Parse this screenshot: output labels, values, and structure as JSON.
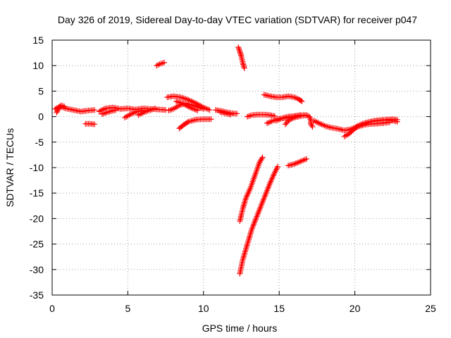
{
  "chart_data": {
    "type": "scatter",
    "title": "Day 326 of 2019, Sidereal Day-to-day VTEC variation (SDTVAR) for receiver p047",
    "xlabel": "GPS time / hours",
    "ylabel": "SDTVAR / TECUs",
    "xlim": [
      0,
      25
    ],
    "ylim": [
      -35,
      15
    ],
    "xticks": [
      0,
      5,
      10,
      15,
      20,
      25
    ],
    "yticks": [
      15,
      10,
      5,
      0,
      -5,
      -10,
      -15,
      -20,
      -25,
      -30,
      -35
    ],
    "grid": true,
    "marker": "+",
    "color": "#ff0000",
    "series": [
      {
        "points": [
          [
            0.2,
            1.5
          ],
          [
            0.5,
            2.0
          ],
          [
            0.9,
            1.6
          ],
          [
            1.4,
            1.3
          ],
          [
            1.9,
            1.0
          ],
          [
            2.4,
            1.2
          ],
          [
            2.8,
            1.3
          ]
        ]
      },
      {
        "points": [
          [
            0.3,
            0.8
          ],
          [
            0.4,
            1.5
          ],
          [
            0.6,
            2.2
          ],
          [
            0.8,
            2.0
          ]
        ]
      },
      {
        "points": [
          [
            2.2,
            -1.4
          ],
          [
            2.5,
            -1.4
          ],
          [
            2.8,
            -1.5
          ]
        ]
      },
      {
        "points": [
          [
            3.1,
            1.0
          ],
          [
            3.5,
            1.6
          ],
          [
            4.0,
            1.8
          ],
          [
            4.5,
            1.5
          ],
          [
            5.0,
            1.6
          ],
          [
            5.5,
            1.4
          ],
          [
            6.0,
            1.6
          ],
          [
            6.5,
            1.5
          ],
          [
            7.0,
            1.4
          ],
          [
            7.5,
            1.3
          ]
        ]
      },
      {
        "points": [
          [
            3.3,
            0.5
          ],
          [
            3.8,
            1.0
          ],
          [
            4.2,
            1.3
          ]
        ]
      },
      {
        "points": [
          [
            4.8,
            -0.2
          ],
          [
            5.2,
            0.5
          ],
          [
            5.6,
            1.0
          ],
          [
            6.0,
            1.2
          ]
        ]
      },
      {
        "points": [
          [
            5.7,
            0.3
          ],
          [
            6.1,
            0.9
          ],
          [
            6.5,
            1.3
          ],
          [
            6.8,
            1.6
          ]
        ]
      },
      {
        "points": [
          [
            6.9,
            10.0
          ],
          [
            7.1,
            10.3
          ],
          [
            7.4,
            10.6
          ]
        ]
      },
      {
        "points": [
          [
            7.6,
            3.8
          ],
          [
            8.0,
            4.0
          ],
          [
            8.5,
            3.8
          ],
          [
            9.0,
            3.3
          ],
          [
            9.5,
            2.6
          ],
          [
            10.0,
            1.8
          ],
          [
            10.4,
            1.3
          ]
        ]
      },
      {
        "points": [
          [
            7.7,
            1.2
          ],
          [
            8.0,
            1.5
          ],
          [
            8.4,
            2.2
          ],
          [
            8.8,
            2.6
          ],
          [
            9.2,
            2.3
          ],
          [
            9.6,
            1.9
          ],
          [
            10.0,
            1.5
          ]
        ]
      },
      {
        "points": [
          [
            8.2,
            3.0
          ],
          [
            8.6,
            2.6
          ],
          [
            9.1,
            1.8
          ],
          [
            9.6,
            1.2
          ]
        ]
      },
      {
        "points": [
          [
            8.4,
            -2.3
          ],
          [
            8.7,
            -1.6
          ],
          [
            9.0,
            -1.0
          ],
          [
            9.5,
            -0.6
          ],
          [
            10.0,
            -0.5
          ],
          [
            10.5,
            -0.5
          ]
        ]
      },
      {
        "points": [
          [
            10.8,
            1.3
          ],
          [
            11.2,
            1.1
          ],
          [
            11.6,
            0.8
          ],
          [
            12.0,
            0.6
          ],
          [
            12.2,
            0.6
          ]
        ]
      },
      {
        "points": [
          [
            11.1,
            0.9
          ],
          [
            11.5,
            0.6
          ],
          [
            11.8,
            0.4
          ]
        ]
      },
      {
        "points": [
          [
            12.3,
            13.6
          ],
          [
            12.4,
            12.8
          ],
          [
            12.5,
            11.8
          ],
          [
            12.6,
            10.5
          ],
          [
            12.7,
            9.5
          ]
        ]
      },
      {
        "points": [
          [
            12.4,
            -20.5
          ],
          [
            12.6,
            -18.0
          ],
          [
            12.8,
            -16.0
          ],
          [
            13.1,
            -14.0
          ],
          [
            13.4,
            -11.5
          ],
          [
            13.7,
            -9.0
          ],
          [
            13.9,
            -8.0
          ]
        ]
      },
      {
        "points": [
          [
            12.4,
            -30.8
          ],
          [
            12.6,
            -28.0
          ],
          [
            12.9,
            -25.0
          ],
          [
            13.2,
            -22.0
          ],
          [
            13.6,
            -19.0
          ],
          [
            14.0,
            -16.0
          ],
          [
            14.4,
            -13.0
          ],
          [
            14.7,
            -11.0
          ],
          [
            14.9,
            -9.8
          ]
        ]
      },
      {
        "points": [
          [
            12.9,
            0.0
          ],
          [
            13.2,
            0.3
          ],
          [
            13.6,
            0.4
          ],
          [
            14.0,
            0.4
          ],
          [
            14.4,
            0.3
          ],
          [
            14.7,
            0.1
          ]
        ]
      },
      {
        "points": [
          [
            14.0,
            4.3
          ],
          [
            14.4,
            4.0
          ],
          [
            14.8,
            3.8
          ],
          [
            15.2,
            3.8
          ],
          [
            15.6,
            4.0
          ],
          [
            16.0,
            3.8
          ],
          [
            16.3,
            3.4
          ],
          [
            16.5,
            3.0
          ]
        ]
      },
      {
        "points": [
          [
            14.2,
            -1.3
          ],
          [
            14.6,
            -0.8
          ],
          [
            15.0,
            -0.4
          ],
          [
            15.4,
            -0.3
          ],
          [
            15.8,
            0.0
          ],
          [
            16.2,
            0.2
          ],
          [
            16.6,
            0.3
          ],
          [
            16.9,
            0.2
          ]
        ]
      },
      {
        "points": [
          [
            14.8,
            -0.8
          ],
          [
            15.2,
            -0.3
          ],
          [
            15.6,
            0.0
          ],
          [
            16.0,
            0.1
          ],
          [
            16.4,
            0.3
          ]
        ]
      },
      {
        "points": [
          [
            15.4,
            -1.5
          ],
          [
            15.7,
            -0.6
          ],
          [
            16.0,
            -0.2
          ],
          [
            16.4,
            0.1
          ],
          [
            16.8,
            0.3
          ]
        ]
      },
      {
        "points": [
          [
            15.6,
            -9.6
          ],
          [
            16.0,
            -9.3
          ],
          [
            16.4,
            -8.8
          ],
          [
            16.8,
            -8.3
          ]
        ]
      },
      {
        "points": [
          [
            17.0,
            0.0
          ],
          [
            17.1,
            -0.8
          ],
          [
            17.1,
            -1.5
          ],
          [
            17.2,
            -2.0
          ]
        ]
      },
      {
        "points": [
          [
            17.3,
            -0.8
          ],
          [
            17.7,
            -1.4
          ],
          [
            18.1,
            -1.9
          ],
          [
            18.5,
            -2.2
          ],
          [
            18.9,
            -2.4
          ],
          [
            19.3,
            -2.7
          ],
          [
            19.7,
            -2.5
          ],
          [
            20.1,
            -2.0
          ],
          [
            20.5,
            -1.5
          ],
          [
            20.9,
            -1.1
          ],
          [
            21.3,
            -0.8
          ],
          [
            21.7,
            -0.7
          ],
          [
            22.1,
            -0.7
          ],
          [
            22.5,
            -0.8
          ],
          [
            22.8,
            -1.0
          ]
        ]
      },
      {
        "points": [
          [
            19.3,
            -3.9
          ],
          [
            19.6,
            -3.4
          ],
          [
            19.9,
            -2.6
          ],
          [
            20.2,
            -1.8
          ],
          [
            20.6,
            -1.3
          ],
          [
            21.0,
            -1.0
          ],
          [
            21.5,
            -0.8
          ],
          [
            22.0,
            -0.6
          ],
          [
            22.5,
            -0.5
          ],
          [
            22.8,
            -0.6
          ]
        ]
      },
      {
        "points": [
          [
            20.0,
            -2.2
          ],
          [
            20.4,
            -1.8
          ],
          [
            20.8,
            -1.5
          ],
          [
            21.3,
            -1.4
          ],
          [
            21.8,
            -1.3
          ],
          [
            22.3,
            -1.1
          ]
        ]
      }
    ]
  }
}
